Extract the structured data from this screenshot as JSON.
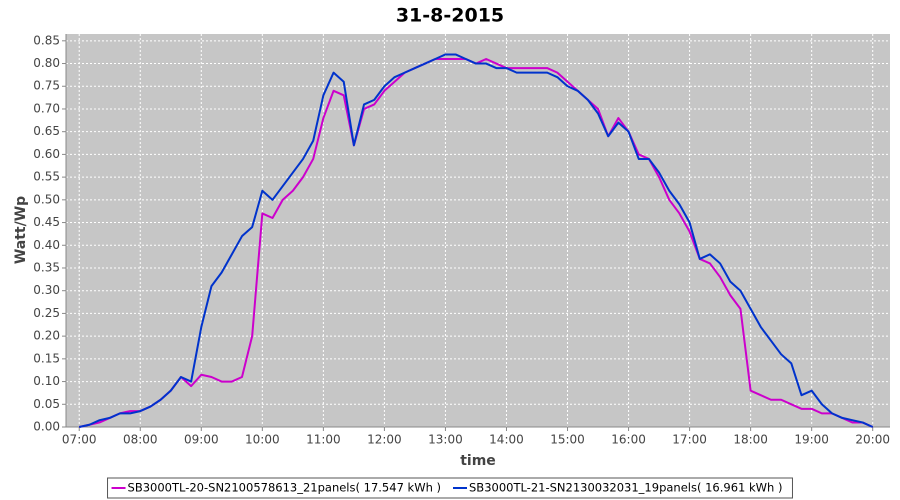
{
  "chart_data": {
    "type": "line",
    "title": "31-8-2015",
    "x_label": "time",
    "y_label": "Watt/Wp",
    "x": [
      420,
      430,
      440,
      450,
      460,
      470,
      480,
      490,
      500,
      510,
      520,
      530,
      540,
      550,
      560,
      570,
      580,
      590,
      600,
      610,
      620,
      630,
      640,
      650,
      660,
      670,
      680,
      690,
      700,
      710,
      720,
      730,
      740,
      750,
      760,
      770,
      780,
      790,
      800,
      810,
      820,
      830,
      840,
      850,
      860,
      870,
      880,
      890,
      900,
      910,
      920,
      930,
      940,
      950,
      960,
      970,
      980,
      990,
      1000,
      1010,
      1020,
      1030,
      1040,
      1050,
      1060,
      1070,
      1080,
      1090,
      1100,
      1110,
      1120,
      1130,
      1140,
      1150,
      1160,
      1170,
      1180,
      1190,
      1200
    ],
    "series": [
      {
        "name": "SB3000TL-20-SN2100578613_21panels( 17.547 kWh )",
        "color": "#cc00cc",
        "values": [
          0.0,
          0.005,
          0.01,
          0.02,
          0.03,
          0.035,
          0.035,
          0.045,
          0.06,
          0.08,
          0.11,
          0.09,
          0.115,
          0.11,
          0.1,
          0.1,
          0.11,
          0.2,
          0.47,
          0.46,
          0.5,
          0.52,
          0.55,
          0.59,
          0.68,
          0.74,
          0.73,
          0.62,
          0.7,
          0.71,
          0.74,
          0.76,
          0.78,
          0.79,
          0.8,
          0.81,
          0.81,
          0.81,
          0.81,
          0.8,
          0.81,
          0.8,
          0.79,
          0.79,
          0.79,
          0.79,
          0.79,
          0.78,
          0.76,
          0.74,
          0.72,
          0.7,
          0.64,
          0.68,
          0.65,
          0.6,
          0.59,
          0.55,
          0.5,
          0.47,
          0.43,
          0.37,
          0.36,
          0.33,
          0.29,
          0.26,
          0.08,
          0.07,
          0.06,
          0.06,
          0.05,
          0.04,
          0.04,
          0.03,
          0.03,
          0.02,
          0.01,
          0.01,
          0.0
        ]
      },
      {
        "name": "SB3000TL-21-SN2130032031_19panels( 16.961 kWh )",
        "color": "#0033cc",
        "values": [
          0.0,
          0.005,
          0.015,
          0.02,
          0.03,
          0.03,
          0.035,
          0.045,
          0.06,
          0.08,
          0.11,
          0.1,
          0.22,
          0.31,
          0.34,
          0.38,
          0.42,
          0.44,
          0.52,
          0.5,
          0.53,
          0.56,
          0.59,
          0.63,
          0.73,
          0.78,
          0.76,
          0.62,
          0.71,
          0.72,
          0.75,
          0.77,
          0.78,
          0.79,
          0.8,
          0.81,
          0.82,
          0.82,
          0.81,
          0.8,
          0.8,
          0.79,
          0.79,
          0.78,
          0.78,
          0.78,
          0.78,
          0.77,
          0.75,
          0.74,
          0.72,
          0.69,
          0.64,
          0.67,
          0.65,
          0.59,
          0.59,
          0.56,
          0.52,
          0.49,
          0.45,
          0.37,
          0.38,
          0.36,
          0.32,
          0.3,
          0.26,
          0.22,
          0.19,
          0.16,
          0.14,
          0.07,
          0.08,
          0.05,
          0.03,
          0.02,
          0.015,
          0.01,
          0.0
        ]
      }
    ],
    "xlim": [
      407,
      1217
    ],
    "ylim": [
      0,
      0.865
    ],
    "xticks": [
      {
        "value": 420,
        "label": "07:00"
      },
      {
        "value": 480,
        "label": "08:00"
      },
      {
        "value": 540,
        "label": "09:00"
      },
      {
        "value": 600,
        "label": "10:00"
      },
      {
        "value": 660,
        "label": "11:00"
      },
      {
        "value": 720,
        "label": "12:00"
      },
      {
        "value": 780,
        "label": "13:00"
      },
      {
        "value": 840,
        "label": "14:00"
      },
      {
        "value": 900,
        "label": "15:00"
      },
      {
        "value": 960,
        "label": "16:00"
      },
      {
        "value": 1020,
        "label": "17:00"
      },
      {
        "value": 1080,
        "label": "18:00"
      },
      {
        "value": 1140,
        "label": "19:00"
      },
      {
        "value": 1200,
        "label": "20:00"
      }
    ],
    "yticks": [
      {
        "value": 0,
        "label": "0.00"
      },
      {
        "value": 0.05,
        "label": "0.05"
      },
      {
        "value": 0.1,
        "label": "0.10"
      },
      {
        "value": 0.15,
        "label": "0.15"
      },
      {
        "value": 0.2,
        "label": "0.20"
      },
      {
        "value": 0.25,
        "label": "0.25"
      },
      {
        "value": 0.3,
        "label": "0.30"
      },
      {
        "value": 0.35,
        "label": "0.35"
      },
      {
        "value": 0.4,
        "label": "0.40"
      },
      {
        "value": 0.45,
        "label": "0.45"
      },
      {
        "value": 0.5,
        "label": "0.50"
      },
      {
        "value": 0.55,
        "label": "0.55"
      },
      {
        "value": 0.6,
        "label": "0.60"
      },
      {
        "value": 0.65,
        "label": "0.65"
      },
      {
        "value": 0.7,
        "label": "0.70"
      },
      {
        "value": 0.75,
        "label": "0.75"
      },
      {
        "value": 0.8,
        "label": "0.80"
      },
      {
        "value": 0.85,
        "label": "0.85"
      }
    ],
    "grid": true
  }
}
